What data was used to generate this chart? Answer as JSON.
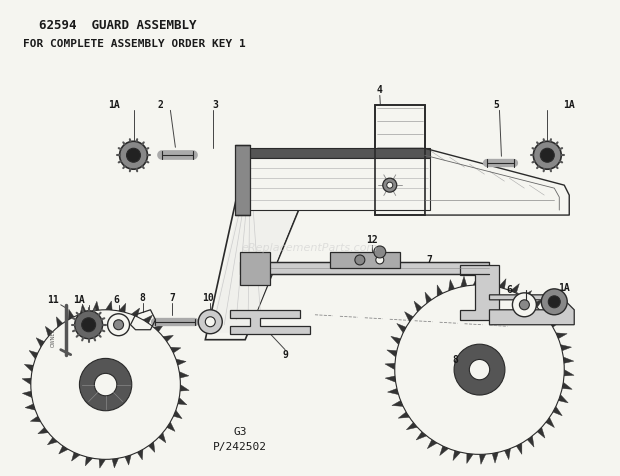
{
  "title1": "62594  GUARD ASSEMBLY",
  "title2": "FOR COMPLETE ASSEMBLY ORDER KEY 1",
  "footer1": "G3",
  "footer2": "P/242502",
  "watermark": "eReplacementParts.com",
  "bg_color": "#f5f5f0",
  "line_color": "#2a2a2a",
  "text_color": "#1a1a1a"
}
